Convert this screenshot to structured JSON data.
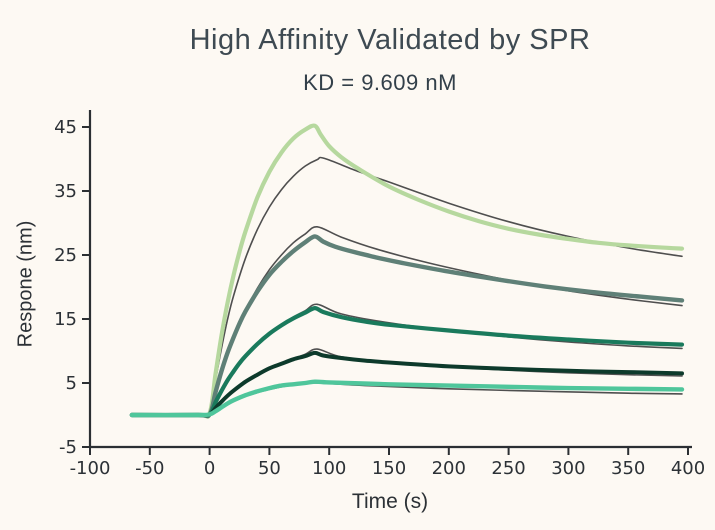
{
  "chart_data": {
    "type": "line",
    "title": "High Affinity Validated by SPR",
    "subtitle": "KD = 9.609 nM",
    "xlabel": "Time (s)",
    "ylabel": "Respone (nm)",
    "xlim": [
      -100,
      400
    ],
    "ylim": [
      -5,
      45
    ],
    "xticks": [
      -100,
      -50,
      0,
      50,
      100,
      150,
      200,
      250,
      300,
      350,
      400
    ],
    "yticks": [
      -5,
      5,
      15,
      25,
      35,
      45
    ],
    "grid": false,
    "legend": "none",
    "colors": {
      "axis": "#2b2f33",
      "tick_label": "#2c3136",
      "title": "#3e4a52",
      "fit_line": "#4f4f4f",
      "background": "#fdf9f3"
    },
    "series": [
      {
        "name": "fit-1",
        "role": "fit",
        "color": "#4f4f4f",
        "width": 1.6,
        "points": [
          [
            0,
            0
          ],
          [
            5,
            5.5
          ],
          [
            10,
            10.5
          ],
          [
            15,
            14.9
          ],
          [
            20,
            18.6
          ],
          [
            30,
            24.5
          ],
          [
            40,
            29
          ],
          [
            50,
            32.5
          ],
          [
            60,
            35.2
          ],
          [
            70,
            37.3
          ],
          [
            80,
            38.9
          ],
          [
            90,
            39.9
          ],
          [
            96,
            40.1
          ],
          [
            125,
            38
          ],
          [
            150,
            36.4
          ],
          [
            200,
            33.1
          ],
          [
            250,
            30.2
          ],
          [
            300,
            27.9
          ],
          [
            350,
            26.1
          ],
          [
            395,
            24.8
          ]
        ]
      },
      {
        "name": "fit-2",
        "role": "fit",
        "color": "#4f4f4f",
        "width": 1.6,
        "points": [
          [
            0,
            0
          ],
          [
            5,
            3.4
          ],
          [
            10,
            6.6
          ],
          [
            15,
            9.4
          ],
          [
            20,
            11.9
          ],
          [
            30,
            16.3
          ],
          [
            40,
            19.8
          ],
          [
            50,
            22.7
          ],
          [
            60,
            25
          ],
          [
            70,
            26.9
          ],
          [
            80,
            28.3
          ],
          [
            90,
            29.4
          ],
          [
            110,
            27.8
          ],
          [
            140,
            25.9
          ],
          [
            180,
            23.9
          ],
          [
            220,
            22.2
          ],
          [
            260,
            20.7
          ],
          [
            300,
            19.4
          ],
          [
            350,
            18.1
          ],
          [
            395,
            17.1
          ]
        ]
      },
      {
        "name": "fit-3",
        "role": "fit",
        "color": "#4f4f4f",
        "width": 1.6,
        "points": [
          [
            0,
            0
          ],
          [
            5,
            1.9
          ],
          [
            10,
            3.6
          ],
          [
            15,
            5.2
          ],
          [
            20,
            6.6
          ],
          [
            30,
            9
          ],
          [
            40,
            11
          ],
          [
            50,
            12.7
          ],
          [
            60,
            14.1
          ],
          [
            70,
            15.3
          ],
          [
            80,
            16.3
          ],
          [
            90,
            17.3
          ],
          [
            110,
            15.8
          ],
          [
            150,
            14.4
          ],
          [
            200,
            13.2
          ],
          [
            250,
            12.2
          ],
          [
            300,
            11.4
          ],
          [
            350,
            10.8
          ],
          [
            395,
            10.4
          ]
        ]
      },
      {
        "name": "fit-4",
        "role": "fit",
        "color": "#4f4f4f",
        "width": 1.6,
        "points": [
          [
            0,
            0
          ],
          [
            5,
            1
          ],
          [
            10,
            2
          ],
          [
            15,
            2.9
          ],
          [
            20,
            3.7
          ],
          [
            30,
            5.1
          ],
          [
            40,
            6.3
          ],
          [
            50,
            7.2
          ],
          [
            60,
            8.1
          ],
          [
            70,
            8.8
          ],
          [
            80,
            9.5
          ],
          [
            90,
            10.3
          ],
          [
            110,
            9.1
          ],
          [
            150,
            8.2
          ],
          [
            200,
            7.5
          ],
          [
            250,
            7
          ],
          [
            300,
            6.6
          ],
          [
            350,
            6.3
          ],
          [
            395,
            6.1
          ]
        ]
      },
      {
        "name": "fit-5",
        "role": "fit",
        "color": "#4f4f4f",
        "width": 1.6,
        "points": [
          [
            0,
            0
          ],
          [
            5,
            0.6
          ],
          [
            10,
            1.1
          ],
          [
            15,
            1.6
          ],
          [
            20,
            2.1
          ],
          [
            30,
            2.9
          ],
          [
            40,
            3.5
          ],
          [
            50,
            4
          ],
          [
            60,
            4.4
          ],
          [
            70,
            4.7
          ],
          [
            80,
            4.9
          ],
          [
            90,
            5
          ],
          [
            130,
            4.6
          ],
          [
            200,
            4.1
          ],
          [
            280,
            3.7
          ],
          [
            350,
            3.4
          ],
          [
            395,
            3.3
          ]
        ]
      },
      {
        "name": "trace-1",
        "role": "data",
        "color": "#b6d89e",
        "width": 4.2,
        "points": [
          [
            -65,
            0
          ],
          [
            -10,
            0
          ],
          [
            0,
            0.3
          ],
          [
            5,
            6.5
          ],
          [
            10,
            12.5
          ],
          [
            15,
            17.5
          ],
          [
            20,
            21.8
          ],
          [
            25,
            25.5
          ],
          [
            30,
            28.7
          ],
          [
            40,
            34
          ],
          [
            50,
            38
          ],
          [
            60,
            41
          ],
          [
            70,
            43.2
          ],
          [
            80,
            44.6
          ],
          [
            88,
            45.2
          ],
          [
            93,
            43.8
          ],
          [
            100,
            42
          ],
          [
            110,
            40.3
          ],
          [
            125,
            38.4
          ],
          [
            150,
            35.7
          ],
          [
            175,
            33.6
          ],
          [
            200,
            31.8
          ],
          [
            225,
            30.3
          ],
          [
            250,
            29.1
          ],
          [
            275,
            28.2
          ],
          [
            300,
            27.5
          ],
          [
            325,
            26.9
          ],
          [
            350,
            26.5
          ],
          [
            375,
            26.2
          ],
          [
            395,
            26
          ]
        ]
      },
      {
        "name": "trace-2",
        "role": "data",
        "color": "#5f8077",
        "width": 4.4,
        "points": [
          [
            -65,
            0
          ],
          [
            -10,
            0
          ],
          [
            0,
            0.1
          ],
          [
            5,
            3.6
          ],
          [
            10,
            6.9
          ],
          [
            15,
            9.7
          ],
          [
            20,
            12.1
          ],
          [
            25,
            14.3
          ],
          [
            30,
            16.2
          ],
          [
            40,
            19.3
          ],
          [
            50,
            21.9
          ],
          [
            60,
            23.9
          ],
          [
            70,
            25.6
          ],
          [
            80,
            27
          ],
          [
            88,
            27.9
          ],
          [
            95,
            27.1
          ],
          [
            105,
            26.3
          ],
          [
            120,
            25.5
          ],
          [
            140,
            24.6
          ],
          [
            160,
            23.8
          ],
          [
            200,
            22.4
          ],
          [
            240,
            21.2
          ],
          [
            280,
            20.1
          ],
          [
            320,
            19.2
          ],
          [
            360,
            18.5
          ],
          [
            395,
            17.9
          ]
        ]
      },
      {
        "name": "trace-3",
        "role": "data",
        "color": "#1a7a5c",
        "width": 4.2,
        "points": [
          [
            -65,
            0
          ],
          [
            -10,
            0
          ],
          [
            0,
            0.1
          ],
          [
            5,
            2
          ],
          [
            10,
            3.8
          ],
          [
            15,
            5.4
          ],
          [
            20,
            6.8
          ],
          [
            25,
            8.1
          ],
          [
            30,
            9.2
          ],
          [
            40,
            11.1
          ],
          [
            50,
            12.7
          ],
          [
            60,
            14
          ],
          [
            70,
            15.1
          ],
          [
            80,
            16
          ],
          [
            88,
            16.7
          ],
          [
            95,
            16.1
          ],
          [
            110,
            15.3
          ],
          [
            130,
            14.6
          ],
          [
            150,
            14.1
          ],
          [
            200,
            13.2
          ],
          [
            250,
            12.4
          ],
          [
            300,
            11.8
          ],
          [
            350,
            11.3
          ],
          [
            395,
            11
          ]
        ]
      },
      {
        "name": "trace-4",
        "role": "data",
        "color": "#0d3a2b",
        "width": 4.0,
        "points": [
          [
            -65,
            0
          ],
          [
            -10,
            0
          ],
          [
            0,
            0.1
          ],
          [
            5,
            1.1
          ],
          [
            10,
            2.1
          ],
          [
            15,
            3
          ],
          [
            20,
            3.8
          ],
          [
            30,
            5.2
          ],
          [
            40,
            6.3
          ],
          [
            50,
            7.3
          ],
          [
            60,
            8
          ],
          [
            70,
            8.7
          ],
          [
            80,
            9.2
          ],
          [
            88,
            9.7
          ],
          [
            95,
            9.3
          ],
          [
            110,
            8.9
          ],
          [
            130,
            8.5
          ],
          [
            150,
            8.2
          ],
          [
            200,
            7.6
          ],
          [
            250,
            7.2
          ],
          [
            300,
            6.9
          ],
          [
            350,
            6.7
          ],
          [
            395,
            6.5
          ]
        ]
      },
      {
        "name": "trace-5",
        "role": "data",
        "color": "#4fc69b",
        "width": 4.4,
        "points": [
          [
            -65,
            0
          ],
          [
            -10,
            0
          ],
          [
            0,
            0.1
          ],
          [
            5,
            0.6
          ],
          [
            10,
            1.2
          ],
          [
            15,
            1.8
          ],
          [
            20,
            2.3
          ],
          [
            30,
            3.1
          ],
          [
            40,
            3.7
          ],
          [
            50,
            4.2
          ],
          [
            60,
            4.6
          ],
          [
            70,
            4.8
          ],
          [
            80,
            5
          ],
          [
            88,
            5.2
          ],
          [
            100,
            5.1
          ],
          [
            150,
            4.8
          ],
          [
            200,
            4.6
          ],
          [
            250,
            4.4
          ],
          [
            300,
            4.2
          ],
          [
            350,
            4.1
          ],
          [
            395,
            4
          ]
        ]
      }
    ]
  }
}
